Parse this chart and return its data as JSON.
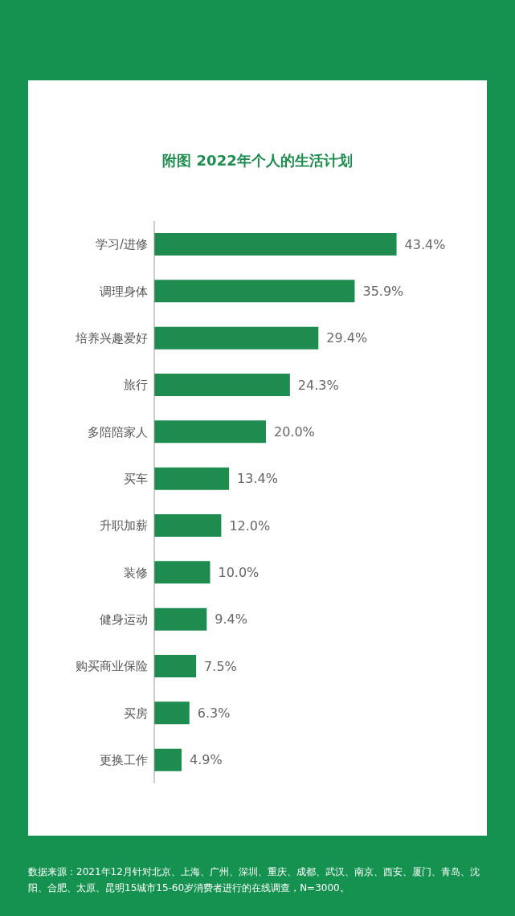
{
  "chart_data": {
    "type": "bar",
    "orientation": "horizontal",
    "title": "附图 2022年个人的生活计划",
    "categories": [
      "学习/进修",
      "调理身体",
      "培养兴趣爱好",
      "旅行",
      "多陪陪家人",
      "买车",
      "升职加薪",
      "装修",
      "健身运动",
      "购买商业保险",
      "买房",
      "更换工作"
    ],
    "values": [
      43.4,
      35.9,
      29.4,
      24.3,
      20.0,
      13.4,
      12.0,
      10.0,
      9.4,
      7.5,
      6.3,
      4.9
    ],
    "value_labels": [
      "43.4%",
      "35.9%",
      "29.4%",
      "24.3%",
      "20.0%",
      "13.4%",
      "12.0%",
      "10.0%",
      "9.4%",
      "7.5%",
      "6.3%",
      "4.9%"
    ],
    "color": "#1e8c4e",
    "annotations": [
      "数据来源：2021年12月针对北京、上海、广州、深圳、重庆、成都、武汉、南京、西安、厦门、青岛、沈阳、合肥、太原、昆明15城市15-60岁消费者进行的在线调查，N=3000。"
    ]
  }
}
